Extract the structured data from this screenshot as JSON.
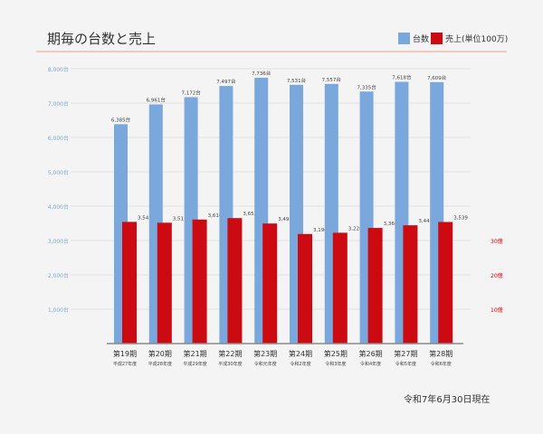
{
  "title": "期毎の台数と売上",
  "legend": {
    "units": "台数",
    "sales": "売上(単位100万)"
  },
  "colors": {
    "units": "#7aa7dc",
    "sales": "#cc0a12"
  },
  "date_note": "令和7年6月30日現在",
  "chart_data": {
    "type": "bar",
    "categories": [
      "第19期",
      "第20期",
      "第21期",
      "第22期",
      "第23期",
      "第24期",
      "第25期",
      "第26期",
      "第27期",
      "第28期"
    ],
    "subcategories": [
      "平成27年度",
      "平成28年度",
      "平成29年度",
      "平成30年度",
      "令和元年度",
      "令和2年度",
      "令和3年度",
      "令和4年度",
      "令和5年度",
      "令和6年度"
    ],
    "series": [
      {
        "name": "台数",
        "values": [
          6385,
          6961,
          7172,
          7497,
          7736,
          7531,
          7557,
          7335,
          7618,
          7609
        ],
        "labels": [
          "6,385台",
          "6,961台",
          "7,172台",
          "7,497台",
          "7,736台",
          "7,531台",
          "7,557台",
          "7,335台",
          "7,618台",
          "7,609台"
        ]
      },
      {
        "name": "売上(単位100万)",
        "values": [
          3542,
          3517,
          3610,
          3652,
          3495,
          3190,
          3226,
          3366,
          3443,
          3539
        ],
        "labels": [
          "3,542",
          "3,517",
          "3,610",
          "3,652",
          "3,495",
          "3,190",
          "3,226",
          "3,366",
          "3,443",
          "3,539"
        ]
      }
    ],
    "left_ticks": [
      {
        "v": 1000,
        "t": "1,000台"
      },
      {
        "v": 2000,
        "t": "2,000台"
      },
      {
        "v": 3000,
        "t": "3,000台"
      },
      {
        "v": 4000,
        "t": "4,000台"
      },
      {
        "v": 5000,
        "t": "5,000台"
      },
      {
        "v": 6000,
        "t": "6,000台"
      },
      {
        "v": 7000,
        "t": "7,000台"
      },
      {
        "v": 8000,
        "t": "8,000台"
      }
    ],
    "right_ticks": [
      {
        "v": 1000,
        "t": "10億"
      },
      {
        "v": 2000,
        "t": "20億"
      },
      {
        "v": 3000,
        "t": "30億"
      }
    ],
    "ylim": [
      0,
      8000
    ],
    "grid": true
  }
}
